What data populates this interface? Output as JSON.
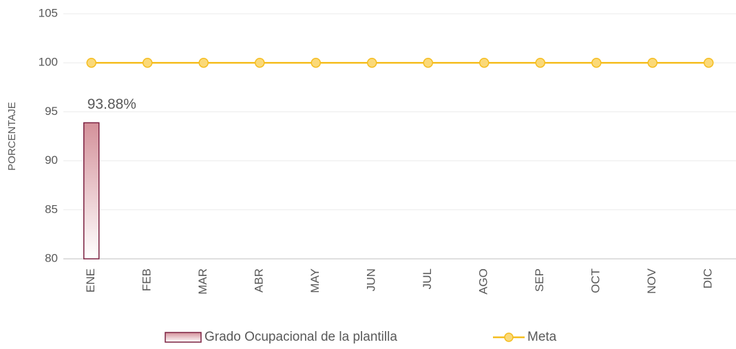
{
  "chart_data": {
    "type": "bar",
    "y_label": "PORCENTAJE",
    "categories": [
      "ENE",
      "FEB",
      "MAR",
      "ABR",
      "MAY",
      "JUN",
      "JUL",
      "AGO",
      "SEP",
      "OCT",
      "NOV",
      "DIC"
    ],
    "series": [
      {
        "name": "Grado Ocupacional de la plantilla",
        "type": "bar",
        "color": "#d4919a",
        "values": [
          93.88,
          null,
          null,
          null,
          null,
          null,
          null,
          null,
          null,
          null,
          null,
          null
        ],
        "value_labels": [
          "93.88%",
          null,
          null,
          null,
          null,
          null,
          null,
          null,
          null,
          null,
          null,
          null
        ]
      },
      {
        "name": "Meta",
        "type": "line",
        "color": "#f5bd1f",
        "values": [
          100,
          100,
          100,
          100,
          100,
          100,
          100,
          100,
          100,
          100,
          100,
          100
        ]
      }
    ],
    "ylim": [
      80,
      105
    ],
    "yticks": [
      80,
      85,
      90,
      95,
      100,
      105
    ],
    "grid": true,
    "legend": "bottom"
  }
}
